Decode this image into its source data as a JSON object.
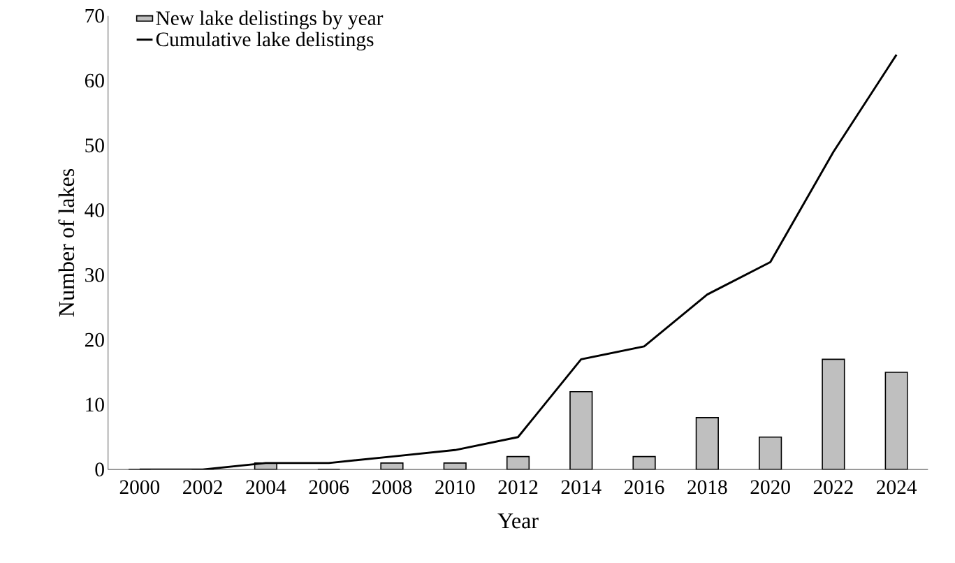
{
  "chart_data": {
    "type": "bar",
    "xlabel": "Year",
    "ylabel": "Number of lakes",
    "categories": [
      "2000",
      "2002",
      "2004",
      "2006",
      "2008",
      "2010",
      "2012",
      "2014",
      "2016",
      "2018",
      "2020",
      "2022",
      "2024"
    ],
    "series": [
      {
        "name": "New lake delistings by year",
        "color": "#bfbfbf",
        "values": [
          0,
          0,
          1,
          0,
          1,
          1,
          2,
          12,
          2,
          8,
          5,
          17,
          15
        ]
      },
      {
        "name": "Cumulative lake delistings",
        "type": "line",
        "color": "#000000",
        "values": [
          0,
          0,
          1,
          1,
          2,
          3,
          5,
          17,
          19,
          27,
          32,
          49,
          64
        ]
      }
    ],
    "ylim": [
      0,
      70
    ],
    "yticks": [
      0,
      10,
      20,
      30,
      40,
      50,
      60,
      70
    ],
    "legend": "top left",
    "marker": "none",
    "line_style": "solid"
  }
}
